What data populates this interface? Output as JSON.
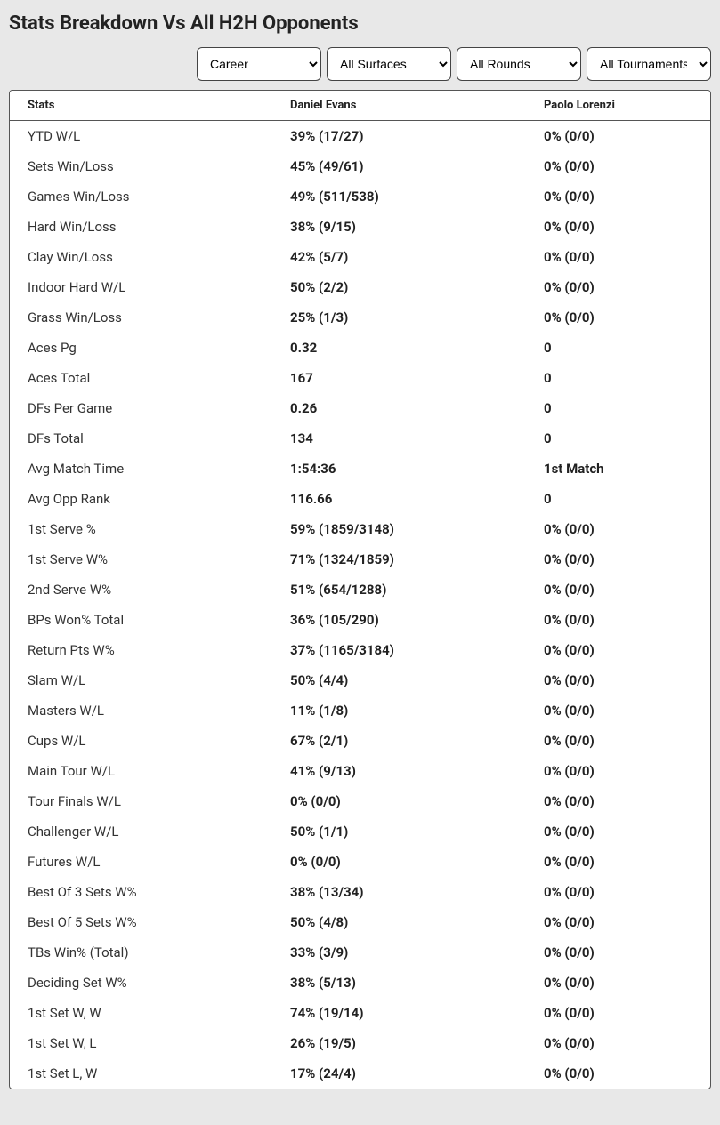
{
  "title": "Stats Breakdown Vs All H2H Opponents",
  "filters": {
    "period": "Career",
    "surface": "All Surfaces",
    "round": "All Rounds",
    "tournament": "All Tournaments"
  },
  "columns": {
    "stats": "Stats",
    "player1": "Daniel Evans",
    "player2": "Paolo Lorenzi"
  },
  "rows": [
    {
      "stat": "YTD W/L",
      "p1": "39% (17/27)",
      "p2": "0% (0/0)"
    },
    {
      "stat": "Sets Win/Loss",
      "p1": "45% (49/61)",
      "p2": "0% (0/0)"
    },
    {
      "stat": "Games Win/Loss",
      "p1": "49% (511/538)",
      "p2": "0% (0/0)"
    },
    {
      "stat": "Hard Win/Loss",
      "p1": "38% (9/15)",
      "p2": "0% (0/0)"
    },
    {
      "stat": "Clay Win/Loss",
      "p1": "42% (5/7)",
      "p2": "0% (0/0)"
    },
    {
      "stat": "Indoor Hard W/L",
      "p1": "50% (2/2)",
      "p2": "0% (0/0)"
    },
    {
      "stat": "Grass Win/Loss",
      "p1": "25% (1/3)",
      "p2": "0% (0/0)"
    },
    {
      "stat": "Aces Pg",
      "p1": "0.32",
      "p2": "0"
    },
    {
      "stat": "Aces Total",
      "p1": "167",
      "p2": "0"
    },
    {
      "stat": "DFs Per Game",
      "p1": "0.26",
      "p2": "0"
    },
    {
      "stat": "DFs Total",
      "p1": "134",
      "p2": "0"
    },
    {
      "stat": "Avg Match Time",
      "p1": "1:54:36",
      "p2": "1st Match"
    },
    {
      "stat": "Avg Opp Rank",
      "p1": "116.66",
      "p2": "0"
    },
    {
      "stat": "1st Serve %",
      "p1": "59% (1859/3148)",
      "p2": "0% (0/0)"
    },
    {
      "stat": "1st Serve W%",
      "p1": "71% (1324/1859)",
      "p2": "0% (0/0)"
    },
    {
      "stat": "2nd Serve W%",
      "p1": "51% (654/1288)",
      "p2": "0% (0/0)"
    },
    {
      "stat": "BPs Won% Total",
      "p1": "36% (105/290)",
      "p2": "0% (0/0)"
    },
    {
      "stat": "Return Pts W%",
      "p1": "37% (1165/3184)",
      "p2": "0% (0/0)"
    },
    {
      "stat": "Slam W/L",
      "p1": "50% (4/4)",
      "p2": "0% (0/0)"
    },
    {
      "stat": "Masters W/L",
      "p1": "11% (1/8)",
      "p2": "0% (0/0)"
    },
    {
      "stat": "Cups W/L",
      "p1": "67% (2/1)",
      "p2": "0% (0/0)"
    },
    {
      "stat": "Main Tour W/L",
      "p1": "41% (9/13)",
      "p2": "0% (0/0)"
    },
    {
      "stat": "Tour Finals W/L",
      "p1": "0% (0/0)",
      "p2": "0% (0/0)"
    },
    {
      "stat": "Challenger W/L",
      "p1": "50% (1/1)",
      "p2": "0% (0/0)"
    },
    {
      "stat": "Futures W/L",
      "p1": "0% (0/0)",
      "p2": "0% (0/0)"
    },
    {
      "stat": "Best Of 3 Sets W%",
      "p1": "38% (13/34)",
      "p2": "0% (0/0)"
    },
    {
      "stat": "Best Of 5 Sets W%",
      "p1": "50% (4/8)",
      "p2": "0% (0/0)"
    },
    {
      "stat": "TBs Win% (Total)",
      "p1": "33% (3/9)",
      "p2": "0% (0/0)"
    },
    {
      "stat": "Deciding Set W%",
      "p1": "38% (5/13)",
      "p2": "0% (0/0)"
    },
    {
      "stat": "1st Set W, W",
      "p1": "74% (19/14)",
      "p2": "0% (0/0)"
    },
    {
      "stat": "1st Set W, L",
      "p1": "26% (19/5)",
      "p2": "0% (0/0)"
    },
    {
      "stat": "1st Set L, W",
      "p1": "17% (24/4)",
      "p2": "0% (0/0)"
    }
  ]
}
